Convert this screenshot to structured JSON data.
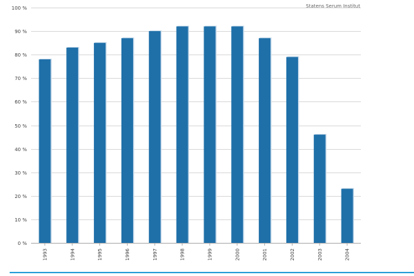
{
  "source_credit": "Statens Serum Institut",
  "colors": {
    "bar": "#1f70a9",
    "bar_shadow": "#c9dcec",
    "grid": "#d8d8d8",
    "axis": "#aaaaaa",
    "bottom_rule": "#2a9fd8"
  },
  "chart_data": {
    "type": "bar",
    "title": "",
    "xlabel": "",
    "ylabel": "",
    "categories": [
      "1993",
      "1994",
      "1995",
      "1996",
      "1997",
      "1998",
      "1999",
      "2000",
      "2001",
      "2002",
      "2003",
      "2004"
    ],
    "values": [
      78,
      83,
      85,
      87,
      90,
      92,
      92,
      92,
      87,
      79,
      46,
      23
    ],
    "ylim": [
      0,
      100
    ],
    "yticks": [
      0,
      10,
      20,
      30,
      40,
      50,
      60,
      70,
      80,
      90,
      100
    ],
    "ytick_labels": [
      "0 %",
      "10 %",
      "20 %",
      "30 %",
      "40 %",
      "50 %",
      "60 %",
      "70 %",
      "80 %",
      "90 %",
      "100 %"
    ],
    "grid": true,
    "legend": "none"
  }
}
